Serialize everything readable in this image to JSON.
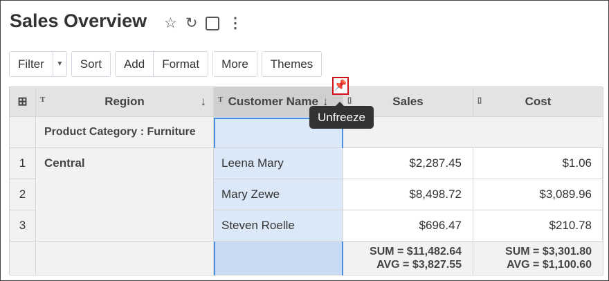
{
  "header": {
    "title": "Sales Overview",
    "icons": [
      "star-icon",
      "refresh-icon",
      "save-icon",
      "more-vertical-icon"
    ]
  },
  "toolbar": {
    "filter": "Filter",
    "sort": "Sort",
    "add": "Add",
    "format": "Format",
    "more": "More",
    "themes": "Themes"
  },
  "table": {
    "columns": [
      "Region",
      "Customer Name",
      "Sales",
      "Cost"
    ],
    "group_label": "Product Category : Furniture",
    "region": "Central",
    "rows": [
      {
        "n": "1",
        "customer": "Leena Mary",
        "sales": "$2,287.45",
        "cost": "$1.06"
      },
      {
        "n": "2",
        "customer": "Mary Zewe",
        "sales": "$8,498.72",
        "cost": "$3,089.96"
      },
      {
        "n": "3",
        "customer": "Steven Roelle",
        "sales": "$696.47",
        "cost": "$210.78"
      }
    ],
    "summary": {
      "sales_sum": "SUM = $11,482.64",
      "sales_avg": "AVG = $3,827.55",
      "cost_sum": "SUM = $3,301.80",
      "cost_avg": "AVG = $1,100.60"
    }
  },
  "tooltip": "Unfreeze",
  "colors": {
    "selection": "#dbe8f8",
    "selection_border": "#4a8de0",
    "pin_highlight": "#d0101a"
  }
}
